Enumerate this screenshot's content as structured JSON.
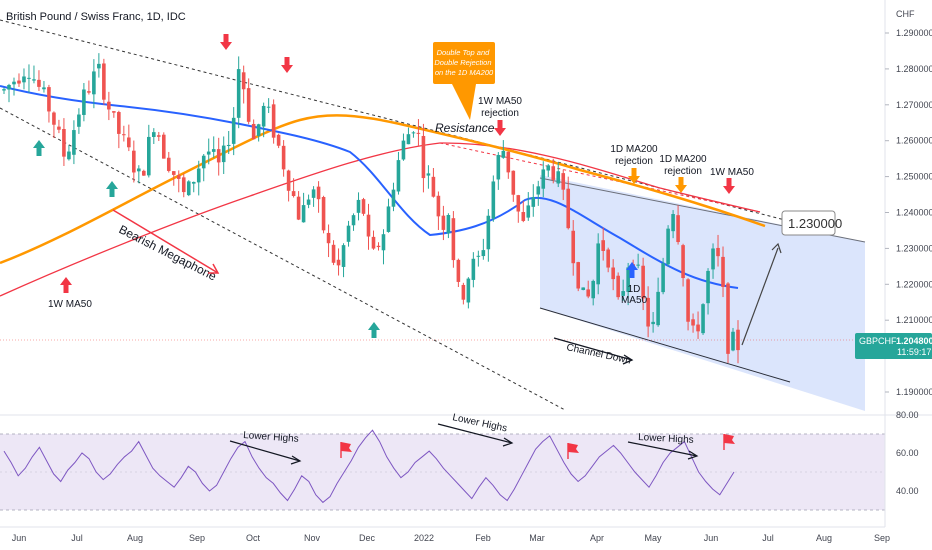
{
  "header": {
    "title": "British Pound / Swiss Franc, 1D, IDC",
    "currency": "CHF"
  },
  "price_badge": {
    "symbol": "GBPCHF",
    "price": "1.204800",
    "countdown": "11:59:17"
  },
  "target_box": {
    "label": "1.230000"
  },
  "annotations": {
    "callout": "Double Top and Double Rejection on the 1D MA200",
    "resistance": "Resistance",
    "rejection_1w_ma50_top": "1W MA50 rejection",
    "rejection_1d_ma200_a": "1D MA200 rejection",
    "rejection_1d_ma200_b": "1D MA200 rejection",
    "label_1w_ma50_right": "1W MA50",
    "label_1w_ma50_left": "1W MA50",
    "label_1d_ma50": "1D MA50",
    "bearish_megaphone": "Bearish Megaphone",
    "channel_down": "Channel Down",
    "rsi_lower_highs_1": "Lower Highs",
    "rsi_lower_highs_2": "Lower Highs",
    "rsi_lower_highs_3": "Lower Highs"
  },
  "colors": {
    "bull": "#26a69a",
    "bear": "#ef5350",
    "ma50_1d": "#2962ff",
    "ma200_1d": "#ff9800",
    "ma50_1w": "#f23645",
    "channel_fill": "#cfdcfb",
    "rsi_line": "#7e57c2",
    "rsi_band": "#ede7f6",
    "arrow_up": "#26a69a",
    "arrow_down": "#f23645",
    "callout_bg": "#ff9800"
  },
  "chart_data": {
    "type": "candlestick",
    "title": "British Pound / Swiss Franc, 1D, IDC",
    "y_axis": {
      "unit": "CHF",
      "range": [
        1.183,
        1.295
      ],
      "ticks": [
        "1.290000",
        "1.280000",
        "1.270000",
        "1.260000",
        "1.250000",
        "1.240000",
        "1.230000",
        "1.220000",
        "1.210000",
        "1.200000",
        "1.190000"
      ]
    },
    "x_axis": {
      "ticks": [
        "Jun",
        "Jul",
        "Aug",
        "Sep",
        "Oct",
        "Nov",
        "Dec",
        "2022",
        "Feb",
        "Mar",
        "Apr",
        "May",
        "Jun",
        "Jul",
        "Aug",
        "Sep"
      ]
    },
    "price_path": [
      [
        0,
        1.274
      ],
      [
        10,
        1.281
      ],
      [
        20,
        1.268
      ],
      [
        26,
        1.255
      ],
      [
        33,
        1.271
      ],
      [
        40,
        1.28
      ],
      [
        46,
        1.266
      ],
      [
        52,
        1.258
      ],
      [
        58,
        1.249
      ],
      [
        64,
        1.266
      ],
      [
        68,
        1.257
      ],
      [
        77,
        1.244
      ],
      [
        86,
        1.258
      ],
      [
        92,
        1.252
      ],
      [
        98,
        1.268
      ],
      [
        100,
        1.282
      ],
      [
        106,
        1.26
      ],
      [
        111,
        1.27
      ],
      [
        115,
        1.262
      ],
      [
        120,
        1.251
      ],
      [
        126,
        1.238
      ],
      [
        131,
        1.248
      ],
      [
        138,
        1.23
      ],
      [
        142,
        1.224
      ],
      [
        146,
        1.235
      ],
      [
        152,
        1.244
      ],
      [
        156,
        1.226
      ],
      [
        162,
        1.236
      ],
      [
        166,
        1.25
      ],
      [
        169,
        1.258
      ],
      [
        175,
        1.266
      ],
      [
        178,
        1.253
      ],
      [
        182,
        1.247
      ],
      [
        186,
        1.236
      ],
      [
        189,
        1.241
      ],
      [
        192,
        1.222
      ],
      [
        194,
        1.215
      ],
      [
        198,
        1.224
      ],
      [
        203,
        1.228
      ],
      [
        206,
        1.24
      ],
      [
        209,
        1.253
      ],
      [
        212,
        1.258
      ],
      [
        215,
        1.251
      ],
      [
        218,
        1.241
      ],
      [
        221,
        1.236
      ],
      [
        225,
        1.245
      ],
      [
        228,
        1.249
      ],
      [
        232,
        1.253
      ],
      [
        235,
        1.25
      ],
      [
        238,
        1.243
      ],
      [
        241,
        1.232
      ],
      [
        244,
        1.222
      ],
      [
        247,
        1.214
      ],
      [
        250,
        1.219
      ],
      [
        253,
        1.233
      ],
      [
        255,
        1.23
      ],
      [
        258,
        1.226
      ],
      [
        260,
        1.213
      ],
      [
        262,
        1.215
      ],
      [
        265,
        1.226
      ],
      [
        268,
        1.228
      ],
      [
        270,
        1.221
      ],
      [
        273,
        1.21
      ],
      [
        276,
        1.208
      ],
      [
        279,
        1.22
      ],
      [
        282,
        1.236
      ],
      [
        284,
        1.243
      ],
      [
        286,
        1.236
      ],
      [
        288,
        1.229
      ],
      [
        290,
        1.213
      ],
      [
        292,
        1.204
      ],
      [
        294,
        1.208
      ],
      [
        296,
        1.21
      ],
      [
        299,
        1.222
      ],
      [
        301,
        1.228
      ],
      [
        304,
        1.226
      ],
      [
        306,
        1.215
      ],
      [
        308,
        1.202
      ],
      [
        310,
        1.204
      ],
      [
        312,
        1.203
      ]
    ],
    "series": [
      {
        "name": "1D MA50",
        "color": "#2962ff"
      },
      {
        "name": "1D MA200",
        "color": "#ff9800"
      },
      {
        "name": "1W MA50",
        "color": "#f23645"
      }
    ],
    "target": 1.23,
    "last_price": 1.2048,
    "rsi": {
      "ticks": [
        "80.00",
        "60.00",
        "40.00"
      ],
      "overbought": 70,
      "oversold": 30,
      "values": [
        61,
        55,
        48,
        52,
        58,
        63,
        56,
        49,
        45,
        51,
        55,
        60,
        57,
        50,
        46,
        49,
        54,
        58,
        61,
        66,
        59,
        52,
        48,
        45,
        42,
        47,
        53,
        50,
        44,
        40,
        43,
        50,
        57,
        63,
        66,
        58,
        52,
        47,
        44,
        39,
        35,
        41,
        48,
        45,
        38,
        34,
        37,
        44,
        50,
        56,
        63,
        68,
        72,
        66,
        58,
        52,
        47,
        50,
        55,
        58,
        61,
        57,
        52,
        48,
        44,
        40,
        36,
        42,
        47,
        43,
        38,
        35,
        41,
        48,
        55,
        62,
        66,
        69,
        62,
        55,
        49,
        45,
        48,
        53,
        58,
        61,
        64,
        60,
        55,
        50,
        46,
        42,
        48,
        55,
        60,
        63,
        66,
        58,
        50,
        45,
        41,
        38,
        44,
        50
      ]
    }
  }
}
